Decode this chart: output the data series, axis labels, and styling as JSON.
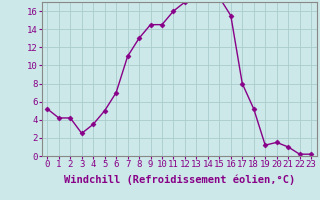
{
  "x": [
    0,
    1,
    2,
    3,
    4,
    5,
    6,
    7,
    8,
    9,
    10,
    11,
    12,
    13,
    14,
    15,
    16,
    17,
    18,
    19,
    20,
    21,
    22,
    23
  ],
  "y": [
    5.2,
    4.2,
    4.2,
    2.5,
    3.5,
    5.0,
    7.0,
    11.0,
    13.0,
    14.5,
    14.5,
    16.0,
    17.0,
    17.5,
    17.5,
    17.5,
    15.5,
    8.0,
    5.2,
    1.2,
    1.5,
    1.0,
    0.2,
    0.2
  ],
  "line_color": "#880088",
  "marker": "D",
  "marker_size": 2.5,
  "bg_color": "#cce8e8",
  "grid_color": "#aacccc",
  "spine_color": "#888888",
  "xlabel": "Windchill (Refroidissement éolien,°C)",
  "xlim": [
    -0.5,
    23.5
  ],
  "ylim": [
    0,
    17
  ],
  "xticks": [
    0,
    1,
    2,
    3,
    4,
    5,
    6,
    7,
    8,
    9,
    10,
    11,
    12,
    13,
    14,
    15,
    16,
    17,
    18,
    19,
    20,
    21,
    22,
    23
  ],
  "yticks": [
    0,
    2,
    4,
    6,
    8,
    10,
    12,
    14,
    16
  ],
  "xlabel_fontsize": 7.5,
  "tick_fontsize": 6.5,
  "linewidth": 1.0
}
